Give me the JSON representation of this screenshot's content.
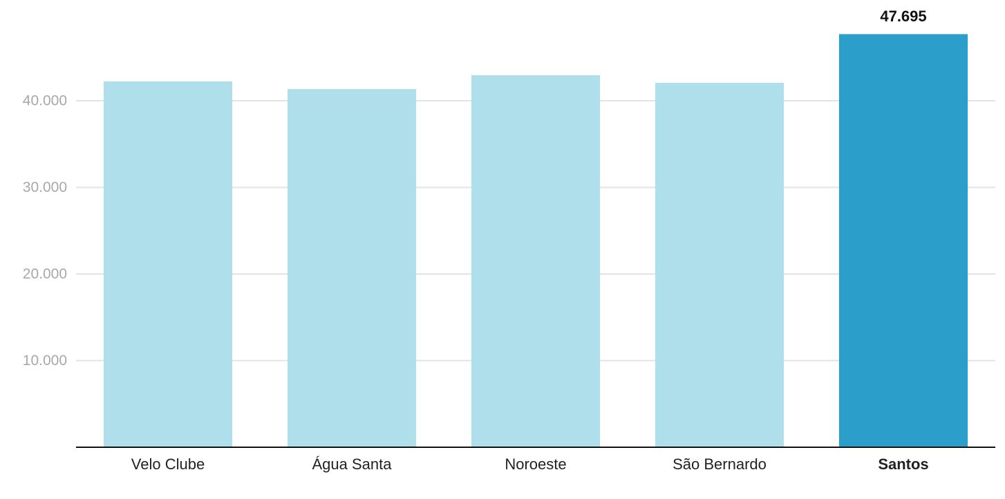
{
  "chart_data": {
    "type": "bar",
    "categories": [
      "Velo Clube",
      "Água Santa",
      "Noroeste",
      "São Bernardo",
      "Santos"
    ],
    "values": [
      42230,
      41350,
      42950,
      42070,
      47695
    ],
    "value_labels": [
      null,
      null,
      null,
      null,
      "47.695"
    ],
    "colors": [
      "#b0dfec",
      "#b0dfec",
      "#b0dfec",
      "#b0dfec",
      "#2b9fc9"
    ],
    "ylim": [
      0,
      50000
    ],
    "yticks": [
      {
        "value": 10000,
        "label": "10.000"
      },
      {
        "value": 20000,
        "label": "20.000"
      },
      {
        "value": 30000,
        "label": "30.000"
      },
      {
        "value": 40000,
        "label": "40.000"
      }
    ],
    "grid": true
  }
}
